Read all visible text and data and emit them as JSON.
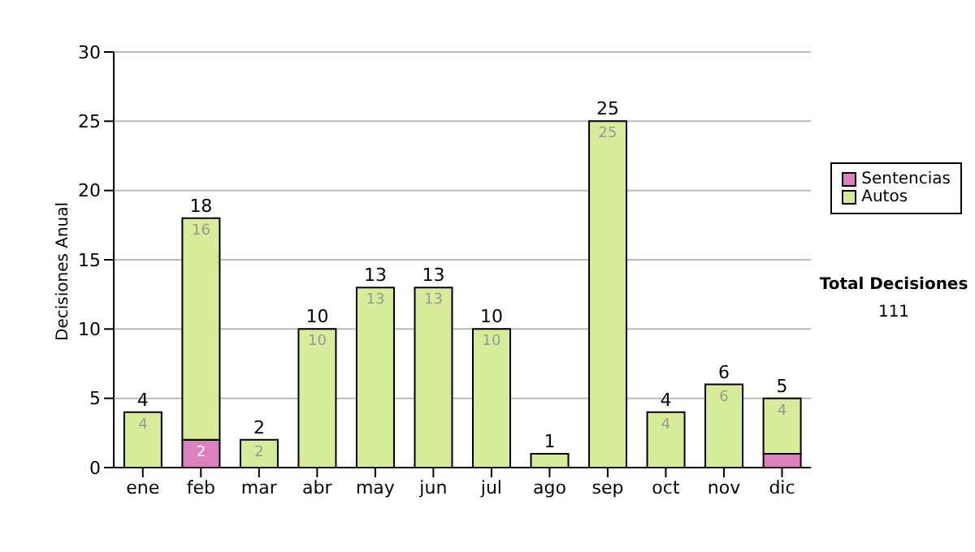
{
  "chart_data": {
    "type": "bar",
    "stacked": true,
    "ylabel": "Decisiones Anual",
    "categories": [
      "ene",
      "feb",
      "mar",
      "abr",
      "may",
      "jun",
      "jul",
      "ago",
      "sep",
      "oct",
      "nov",
      "dic"
    ],
    "series": [
      {
        "name": "Sentencias",
        "color": "#dd80c0",
        "values": [
          0,
          2,
          0,
          0,
          0,
          0,
          0,
          0,
          0,
          0,
          0,
          1
        ],
        "value_labels": [
          null,
          "2",
          null,
          null,
          null,
          null,
          null,
          null,
          null,
          null,
          null,
          null
        ]
      },
      {
        "name": "Autos",
        "color": "#d6ec98",
        "values": [
          4,
          16,
          2,
          10,
          13,
          13,
          10,
          1,
          25,
          4,
          6,
          4
        ],
        "value_labels": [
          "4",
          "16",
          "2",
          "10",
          "13",
          "13",
          "10",
          null,
          "25",
          "4",
          "6",
          "4"
        ]
      }
    ],
    "totals": [
      "4",
      "18",
      "2",
      "10",
      "13",
      "13",
      "10",
      "1",
      "25",
      "4",
      "6",
      "5"
    ],
    "ylim": [
      0,
      30
    ],
    "yticks": [
      0,
      5,
      10,
      15,
      20,
      25,
      30
    ],
    "grid": "y",
    "legend": "right",
    "annotations": [
      "Total Decisiones",
      "111"
    ]
  }
}
